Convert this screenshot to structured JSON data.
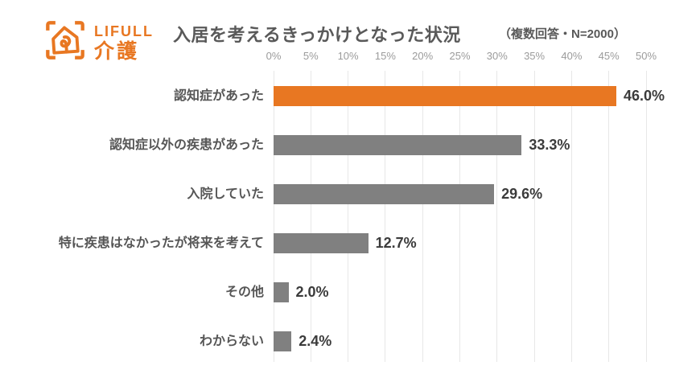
{
  "logo": {
    "brand": "LIFULL",
    "service": "介護",
    "color": "#e87722"
  },
  "header": {
    "title": "入居を考えるきっかけとなった状況",
    "note": "（複数回答・N=2000）"
  },
  "chart_data": {
    "type": "bar",
    "orientation": "horizontal",
    "title": "入居を考えるきっかけとなった状況",
    "note": "（複数回答・N=2000）",
    "categories": [
      "認知症があった",
      "認知症以外の疾患があった",
      "入院していた",
      "特に疾患はなかったが将来を考えて",
      "その他",
      "わからない"
    ],
    "values": [
      46.0,
      33.3,
      29.6,
      12.7,
      2.0,
      2.4
    ],
    "value_labels": [
      "46.0%",
      "33.3%",
      "29.6%",
      "12.7%",
      "2.0%",
      "2.4%"
    ],
    "bar_colors": [
      "#e87722",
      "#808080",
      "#808080",
      "#808080",
      "#808080",
      "#808080"
    ],
    "xlim": [
      0,
      50
    ],
    "x_ticks": [
      "0%",
      "5%",
      "10%",
      "15%",
      "20%",
      "25%",
      "30%",
      "35%",
      "40%",
      "45%",
      "50%"
    ],
    "grid": true,
    "legend": false
  },
  "colors": {
    "accent_orange": "#e87722",
    "bar_gray": "#808080",
    "gridline": "#e7e7e7",
    "tick_text": "#9b9b9b",
    "category_text": "#565656",
    "value_text": "#3b3b3b",
    "title_text": "#595959"
  }
}
